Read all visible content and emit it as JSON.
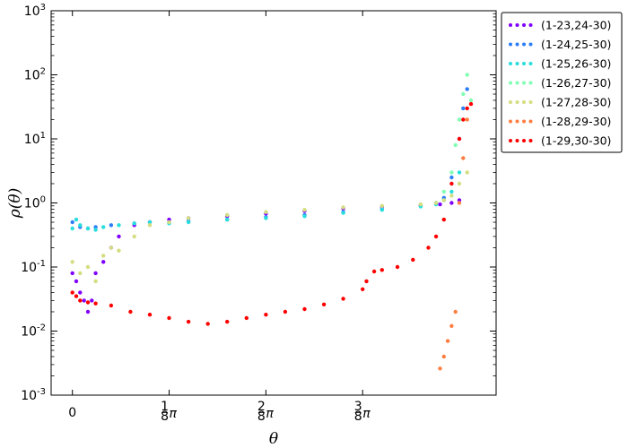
{
  "chart_data": {
    "type": "scatter",
    "title": "",
    "xlabel": "θ",
    "ylabel": "ρ(θ)",
    "yscale": "log",
    "ylim": [
      0.001,
      1000
    ],
    "xlim_over_pi": [
      -0.0275,
      0.5475
    ],
    "x_ticks": [
      {
        "value_over_pi": 0,
        "label": "0"
      },
      {
        "value_over_pi": 0.125,
        "label": "1/8 π"
      },
      {
        "value_over_pi": 0.25,
        "label": "2/8 π"
      },
      {
        "value_over_pi": 0.375,
        "label": "3/8 π"
      }
    ],
    "y_ticks": [
      {
        "value": 0.001,
        "exp": "-3"
      },
      {
        "value": 0.01,
        "exp": "-2"
      },
      {
        "value": 0.1,
        "exp": "-1"
      },
      {
        "value": 1,
        "exp": "0"
      },
      {
        "value": 10,
        "exp": "1"
      },
      {
        "value": 100,
        "exp": "2"
      },
      {
        "value": 1000,
        "exp": "3"
      }
    ],
    "legend_position": "outside-top-right",
    "series": [
      {
        "name": "(1-23,24-30)",
        "color": "#8000ff",
        "x_over_pi": [
          0.0,
          0.005,
          0.01,
          0.015,
          0.02,
          0.025,
          0.03,
          0.04,
          0.05,
          0.06,
          0.08,
          0.1,
          0.125,
          0.15,
          0.2,
          0.25,
          0.3,
          0.35,
          0.4,
          0.45,
          0.475,
          0.49,
          0.5
        ],
        "y": [
          0.08,
          0.06,
          0.04,
          0.03,
          0.02,
          0.03,
          0.08,
          0.12,
          0.2,
          0.3,
          0.45,
          0.5,
          0.55,
          0.58,
          0.62,
          0.68,
          0.75,
          0.82,
          0.88,
          0.92,
          0.95,
          1.0,
          1.1
        ]
      },
      {
        "name": "(1-24,25-30)",
        "color": "#2c7ef7",
        "x_over_pi": [
          0.0,
          0.01,
          0.02,
          0.03,
          0.05,
          0.08,
          0.1,
          0.125,
          0.15,
          0.2,
          0.25,
          0.3,
          0.35,
          0.4,
          0.45,
          0.47,
          0.48,
          0.49,
          0.5,
          0.505,
          0.51
        ],
        "y": [
          0.5,
          0.42,
          0.4,
          0.42,
          0.45,
          0.48,
          0.5,
          0.5,
          0.52,
          0.55,
          0.6,
          0.65,
          0.72,
          0.8,
          0.9,
          1.0,
          1.2,
          2.5,
          10,
          30,
          60
        ]
      },
      {
        "name": "(1-25,26-30)",
        "color": "#2adddd",
        "x_over_pi": [
          0.0,
          0.005,
          0.01,
          0.02,
          0.03,
          0.04,
          0.06,
          0.08,
          0.1,
          0.125,
          0.15,
          0.2,
          0.25,
          0.3,
          0.35,
          0.4,
          0.45,
          0.47,
          0.48,
          0.49,
          0.5
        ],
        "y": [
          0.4,
          0.55,
          0.45,
          0.4,
          0.38,
          0.42,
          0.45,
          0.48,
          0.5,
          0.48,
          0.5,
          0.55,
          0.58,
          0.62,
          0.7,
          0.78,
          0.88,
          0.95,
          1.1,
          1.5,
          3.0
        ]
      },
      {
        "name": "(1-26,27-30)",
        "color": "#80ffb4",
        "x_over_pi": [
          0.47,
          0.48,
          0.49,
          0.495,
          0.5,
          0.505,
          0.51,
          0.515
        ],
        "y": [
          1.0,
          1.5,
          3.0,
          8.0,
          20,
          50,
          100,
          40
        ]
      },
      {
        "name": "(1-27,28-30)",
        "color": "#d4dd80",
        "x_over_pi": [
          0.0,
          0.01,
          0.02,
          0.03,
          0.04,
          0.05,
          0.06,
          0.08,
          0.1,
          0.125,
          0.15,
          0.2,
          0.25,
          0.3,
          0.35,
          0.4,
          0.45,
          0.47,
          0.48,
          0.49,
          0.5,
          0.51
        ],
        "y": [
          0.12,
          0.08,
          0.1,
          0.06,
          0.15,
          0.2,
          0.18,
          0.3,
          0.45,
          0.5,
          0.58,
          0.65,
          0.72,
          0.78,
          0.85,
          0.9,
          0.95,
          1.0,
          1.1,
          1.3,
          2.0,
          3.0
        ]
      },
      {
        "name": "(1-28,29-30)",
        "color": "#ff7e41",
        "x_over_pi": [
          0.475,
          0.48,
          0.485,
          0.49,
          0.495,
          0.5,
          0.505,
          0.51
        ],
        "y": [
          0.0026,
          0.004,
          0.007,
          0.012,
          0.02,
          1.0,
          5.0,
          20
        ]
      },
      {
        "name": "(1-29,30-30)",
        "color": "#ff0000",
        "x_over_pi": [
          0.0,
          0.005,
          0.01,
          0.02,
          0.03,
          0.05,
          0.075,
          0.1,
          0.125,
          0.15,
          0.175,
          0.2,
          0.225,
          0.25,
          0.275,
          0.3,
          0.325,
          0.35,
          0.375,
          0.38,
          0.39,
          0.4,
          0.42,
          0.44,
          0.46,
          0.47,
          0.48,
          0.49,
          0.5,
          0.505,
          0.51,
          0.515
        ],
        "y": [
          0.04,
          0.035,
          0.03,
          0.028,
          0.027,
          0.025,
          0.02,
          0.018,
          0.016,
          0.014,
          0.013,
          0.014,
          0.016,
          0.018,
          0.02,
          0.022,
          0.026,
          0.032,
          0.045,
          0.06,
          0.085,
          0.09,
          0.1,
          0.13,
          0.2,
          0.3,
          0.55,
          2.0,
          10,
          20,
          30,
          35
        ]
      }
    ]
  }
}
